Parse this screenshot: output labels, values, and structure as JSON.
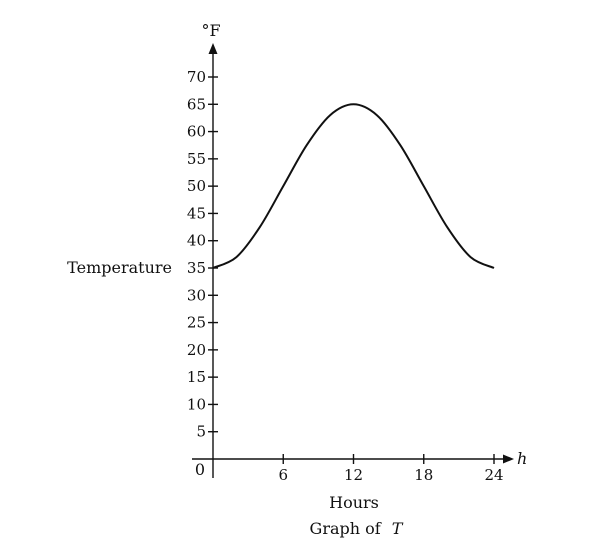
{
  "chart_data": {
    "type": "line",
    "title": "Graph of T",
    "title_prefix": "Graph of",
    "title_var": "T",
    "xlabel": "Hours",
    "x_axis_var": "h",
    "ylabel": "Temperature",
    "y_unit": "°F",
    "origin_label": "0",
    "xlim": [
      0,
      24
    ],
    "ylim": [
      0,
      70
    ],
    "x_ticks": [
      6,
      12,
      18,
      24
    ],
    "y_ticks": [
      5,
      10,
      15,
      20,
      25,
      30,
      35,
      40,
      45,
      50,
      55,
      60,
      65,
      70
    ],
    "grid": false,
    "legend": "none",
    "series": [
      {
        "x": [
          0,
          2,
          4,
          6,
          8,
          10,
          12,
          14,
          16,
          18,
          20,
          22,
          24
        ],
        "y": [
          35,
          37,
          42.5,
          50,
          57.5,
          63,
          65,
          63,
          57.5,
          50,
          42.5,
          37,
          35
        ]
      }
    ]
  }
}
